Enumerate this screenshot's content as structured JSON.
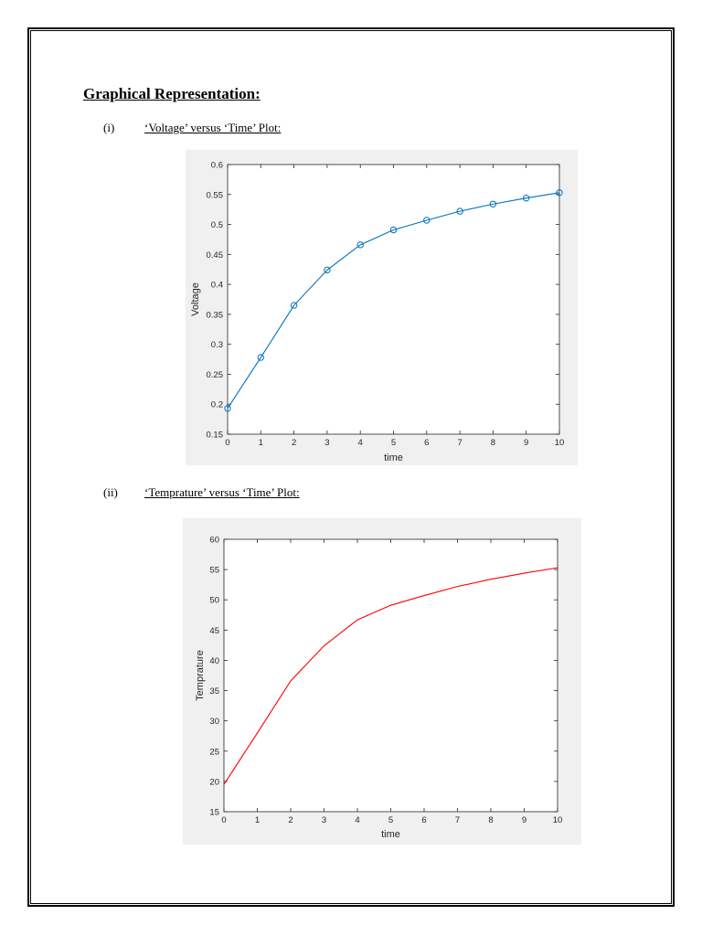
{
  "heading": "Graphical Representation:",
  "sections": [
    {
      "number": "(i)",
      "title": "‘Voltage’ versus ‘Time’ Plot:"
    },
    {
      "number": "(ii)",
      "title": "‘Temprature’ versus ‘Time’ Plot:"
    }
  ],
  "chart_data": [
    {
      "type": "line",
      "xlabel": "time",
      "ylabel": "Voltage",
      "xlim": [
        0,
        10
      ],
      "ylim": [
        0.15,
        0.6
      ],
      "xticks": [
        "0",
        "1",
        "2",
        "3",
        "4",
        "5",
        "6",
        "7",
        "8",
        "9",
        "10"
      ],
      "yticks": [
        "0.15",
        "0.2",
        "0.25",
        "0.3",
        "0.35",
        "0.4",
        "0.45",
        "0.5",
        "0.55",
        "0.6"
      ],
      "grid": false,
      "markers": "circle",
      "color": "#0072BD",
      "series": [
        {
          "x": [
            0,
            1,
            2,
            3,
            4,
            5,
            6,
            7,
            8,
            9,
            10
          ],
          "values": [
            0.193,
            0.278,
            0.365,
            0.424,
            0.466,
            0.491,
            0.507,
            0.522,
            0.534,
            0.544,
            0.553
          ]
        }
      ]
    },
    {
      "type": "line",
      "xlabel": "time",
      "ylabel": "Temprature",
      "xlim": [
        0,
        10
      ],
      "ylim": [
        15,
        60
      ],
      "xticks": [
        "0",
        "1",
        "2",
        "3",
        "4",
        "5",
        "6",
        "7",
        "8",
        "9",
        "10"
      ],
      "yticks": [
        "15",
        "20",
        "25",
        "30",
        "35",
        "40",
        "45",
        "50",
        "55",
        "60"
      ],
      "grid": false,
      "markers": "none",
      "color": "#FF0000",
      "series": [
        {
          "x": [
            0,
            1,
            2,
            3,
            4,
            5,
            6,
            7,
            8,
            9,
            10
          ],
          "values": [
            19.5,
            28.0,
            36.6,
            42.4,
            46.7,
            49.1,
            50.7,
            52.2,
            53.4,
            54.4,
            55.3
          ]
        }
      ]
    }
  ]
}
